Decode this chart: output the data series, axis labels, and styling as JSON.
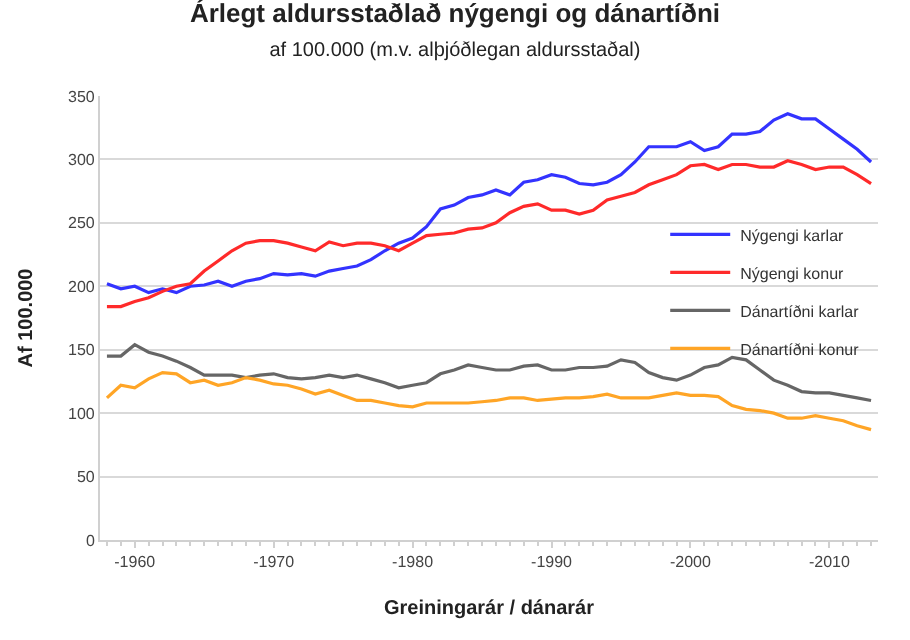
{
  "chart_data": {
    "type": "line",
    "title": "Árlegt aldursstaðlað nýgengi og dánartíðni",
    "subtitle": "af 100.000 (m.v. alþjóðlegan aldursstaðal)",
    "xlabel": "Greiningarár / dánarár",
    "ylabel": "Af 100.000",
    "categories": [
      null,
      null,
      "-1960",
      null,
      null,
      null,
      null,
      null,
      null,
      null,
      null,
      null,
      "-1970",
      null,
      null,
      null,
      null,
      null,
      null,
      null,
      null,
      null,
      "-1980",
      null,
      null,
      null,
      null,
      null,
      null,
      null,
      null,
      null,
      "-1990",
      null,
      null,
      null,
      null,
      null,
      null,
      null,
      null,
      null,
      "-2000",
      null,
      null,
      null,
      null,
      null,
      null,
      null,
      null,
      null,
      "-2010",
      null,
      null,
      null
    ],
    "series": [
      {
        "name": "Nýgengi karlar",
        "color": "#3333ff",
        "values": [
          202,
          198,
          200,
          195,
          198,
          195,
          200,
          201,
          204,
          200,
          204,
          206,
          210,
          209,
          210,
          208,
          212,
          214,
          216,
          221,
          228,
          234,
          238,
          247,
          261,
          264,
          270,
          272,
          276,
          272,
          282,
          284,
          288,
          286,
          281,
          280,
          282,
          288,
          298,
          310,
          310,
          310,
          314,
          307,
          310,
          320,
          320,
          322,
          331,
          336,
          332,
          332,
          324,
          316,
          308,
          298
        ]
      },
      {
        "name": "Nýgengi konur",
        "color": "#ff2a2a",
        "values": [
          184,
          184,
          188,
          191,
          196,
          200,
          202,
          212,
          220,
          228,
          234,
          236,
          236,
          234,
          231,
          228,
          235,
          232,
          234,
          234,
          232,
          228,
          234,
          240,
          241,
          242,
          245,
          246,
          250,
          258,
          263,
          265,
          260,
          260,
          257,
          260,
          268,
          271,
          274,
          280,
          284,
          288,
          295,
          296,
          292,
          296,
          296,
          294,
          294,
          299,
          296,
          292,
          294,
          294,
          288,
          281
        ]
      },
      {
        "name": "Dánartíðni karlar",
        "color": "#666666",
        "values": [
          145,
          145,
          154,
          148,
          145,
          141,
          136,
          130,
          130,
          130,
          128,
          130,
          131,
          128,
          127,
          128,
          130,
          128,
          130,
          127,
          124,
          120,
          122,
          124,
          131,
          134,
          138,
          136,
          134,
          134,
          137,
          138,
          134,
          134,
          136,
          136,
          137,
          142,
          140,
          132,
          128,
          126,
          130,
          136,
          138,
          144,
          142,
          134,
          126,
          122,
          117,
          116,
          116,
          114,
          112,
          110
        ]
      },
      {
        "name": "Dánartíðni konur",
        "color": "#ffa526",
        "values": [
          112,
          122,
          120,
          127,
          132,
          131,
          124,
          126,
          122,
          124,
          128,
          126,
          123,
          122,
          119,
          115,
          118,
          114,
          110,
          110,
          108,
          106,
          105,
          108,
          108,
          108,
          108,
          109,
          110,
          112,
          112,
          110,
          111,
          112,
          112,
          113,
          115,
          112,
          112,
          112,
          114,
          116,
          114,
          114,
          113,
          106,
          103,
          102,
          100,
          96,
          96,
          98,
          96,
          94,
          90,
          87
        ]
      }
    ],
    "ylim": [
      0,
      350
    ],
    "yticks": [
      0,
      50,
      100,
      150,
      200,
      250,
      300,
      350
    ],
    "grid": "y",
    "legend": "right",
    "marker": "none",
    "line_style": "solid"
  }
}
